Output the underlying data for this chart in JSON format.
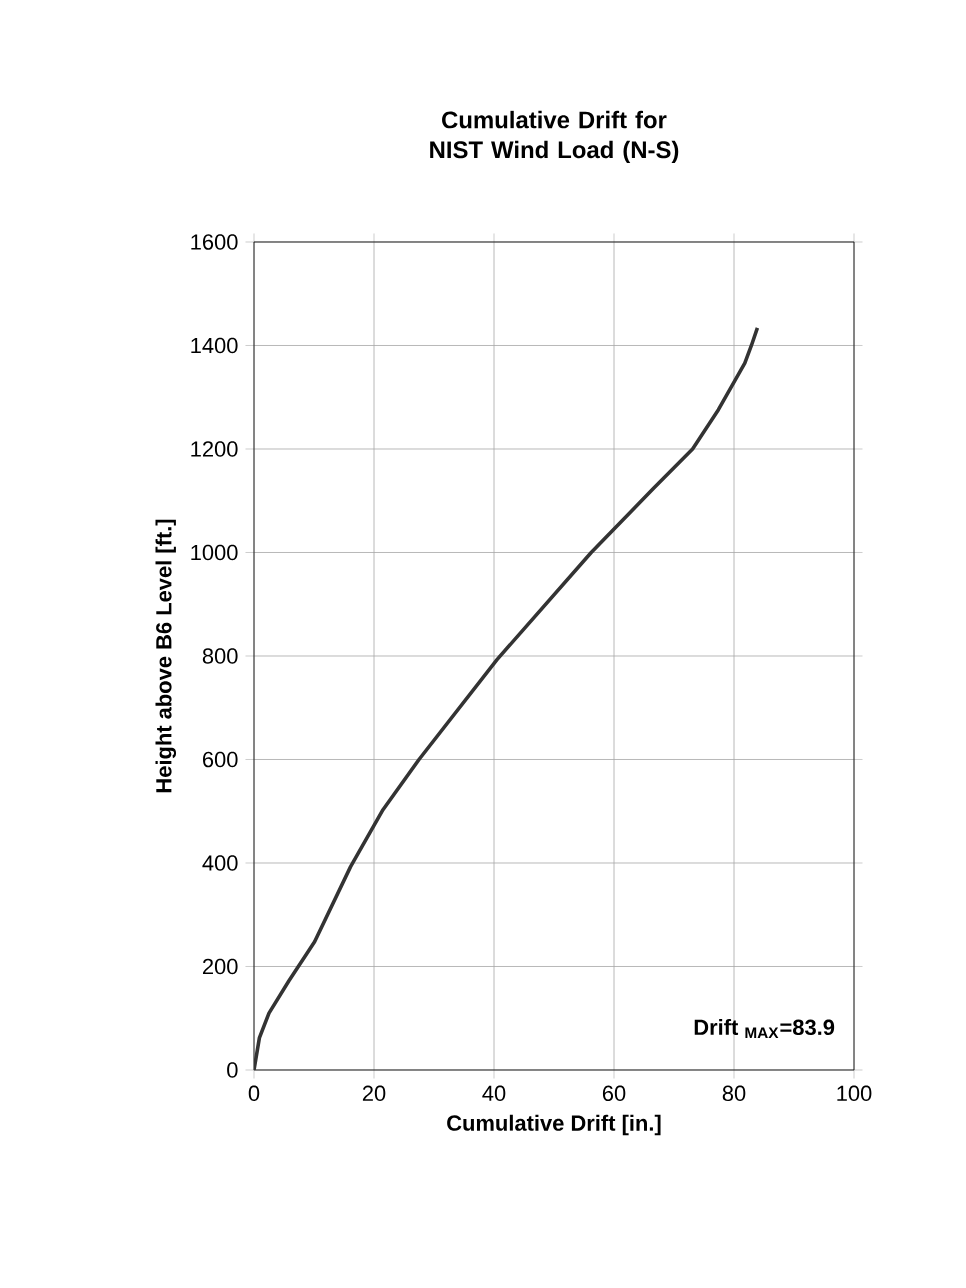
{
  "chart_data": {
    "type": "line",
    "title": "Cumulative Drift for NIST Wind Load (N-S)",
    "xlabel": "Cumulative Drift [in.]",
    "ylabel": "Height above B6 Level [ft.]",
    "annotations": [
      "Drift $_{MAX}$=83.9"
    ],
    "x": [
      0,
      0.9,
      2.5,
      5.8,
      10.1,
      16.1,
      21.5,
      27.5,
      40.5,
      56.2,
      66.6,
      73.1,
      77.4,
      81.8,
      82.9,
      83.9
    ],
    "series": [
      {
        "color": "#333333",
        "values": [
          0,
          62,
          110,
          172,
          248,
          393,
          503,
          600,
          793,
          1000,
          1124,
          1200,
          1276,
          1366,
          1400,
          1434
        ]
      }
    ],
    "xlim": [
      0,
      100
    ],
    "ylim": [
      0,
      1600
    ],
    "xticks": [
      0,
      20,
      40,
      60,
      80,
      100
    ],
    "yticks": [
      0,
      200,
      400,
      600,
      800,
      1000,
      1200,
      1400,
      1600
    ],
    "grid": true,
    "marker": "none",
    "line_style": "solid"
  }
}
